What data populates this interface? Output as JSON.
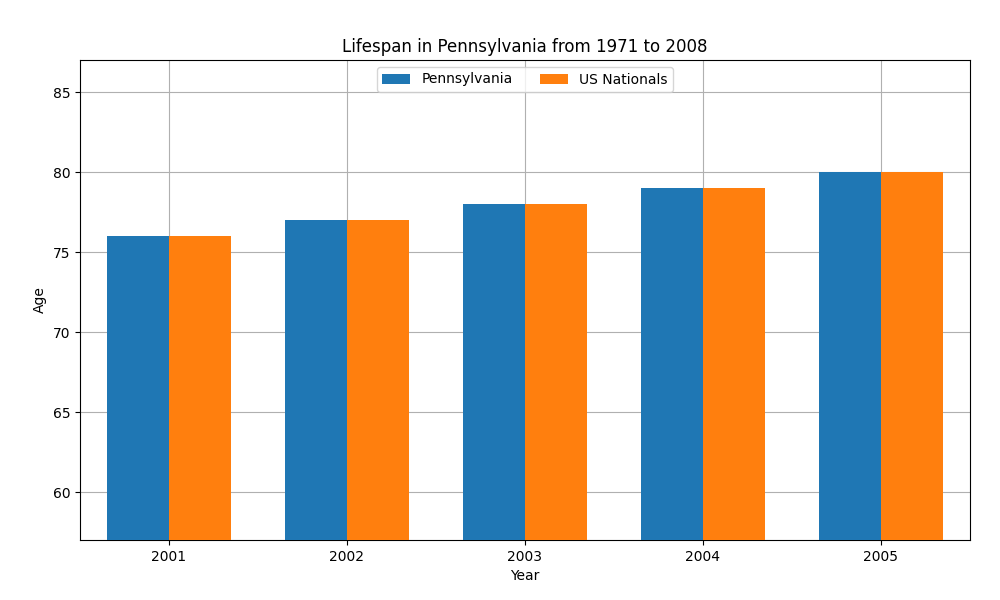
{
  "chart_data": {
    "type": "bar",
    "title": "Lifespan in Pennsylvania from 1971 to 2008",
    "x_label": "Year",
    "y_label": "Age",
    "categories": [
      "2001",
      "2002",
      "2003",
      "2004",
      "2005"
    ],
    "series": [
      {
        "name": "Pennsylvania",
        "values": [
          76,
          77,
          78,
          79,
          80
        ]
      },
      {
        "name": "US Nationals",
        "values": [
          76,
          77,
          78,
          79,
          80
        ]
      }
    ],
    "ylim": [
      57,
      87
    ],
    "yticks": [
      60,
      65,
      70,
      75,
      80,
      85
    ],
    "grid": true,
    "legend": "upper center"
  }
}
